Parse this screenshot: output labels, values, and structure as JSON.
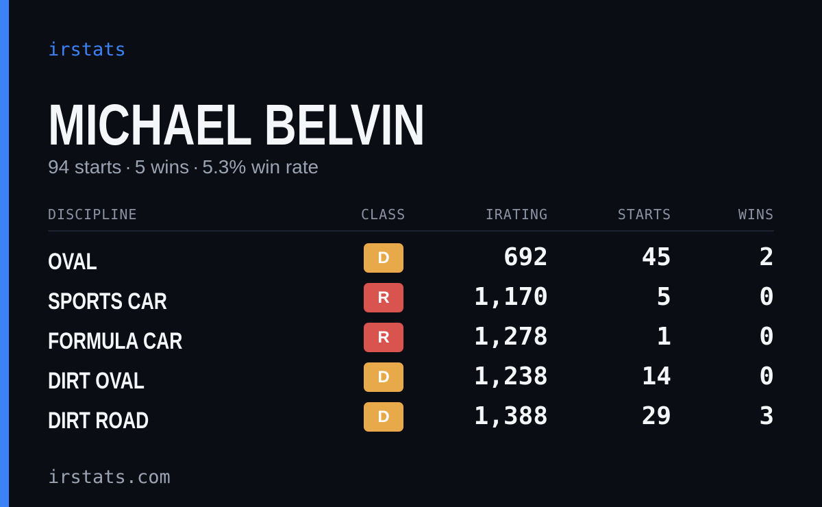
{
  "brand": "irstats",
  "player_name": "MICHAEL BELVIN",
  "summary": {
    "starts": "94 starts",
    "wins": "5 wins",
    "win_rate": "5.3% win rate",
    "separator": "·"
  },
  "columns": {
    "discipline": "DISCIPLINE",
    "class": "CLASS",
    "irating": "IRATING",
    "starts": "STARTS",
    "wins": "WINS"
  },
  "class_colors": {
    "D": "#e8a94a",
    "R": "#d9534f"
  },
  "rows": [
    {
      "discipline": "OVAL",
      "class": "D",
      "irating": "692",
      "starts": "45",
      "wins": "2"
    },
    {
      "discipline": "SPORTS CAR",
      "class": "R",
      "irating": "1,170",
      "starts": "5",
      "wins": "0"
    },
    {
      "discipline": "FORMULA CAR",
      "class": "R",
      "irating": "1,278",
      "starts": "1",
      "wins": "0"
    },
    {
      "discipline": "DIRT OVAL",
      "class": "D",
      "irating": "1,238",
      "starts": "14",
      "wins": "0"
    },
    {
      "discipline": "DIRT ROAD",
      "class": "D",
      "irating": "1,388",
      "starts": "29",
      "wins": "3"
    }
  ],
  "footer": "irstats.com"
}
